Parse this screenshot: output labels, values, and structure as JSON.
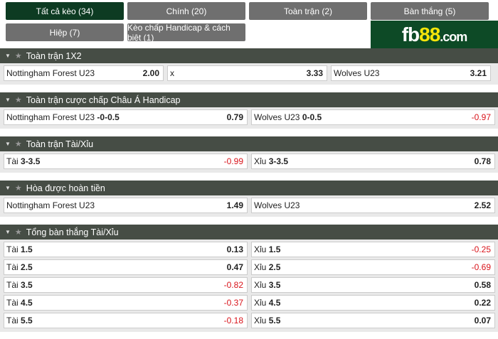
{
  "tabs": [
    {
      "label": "Tất cả kèo (34)",
      "active": true
    },
    {
      "label": "Chính (20)"
    },
    {
      "label": "Toàn trận (2)"
    },
    {
      "label": "Bàn thắng (5)"
    },
    {
      "label": "Hiệp (7)"
    },
    {
      "label": "Kèo chấp Handicap & cách biệt (1)"
    }
  ],
  "logo": {
    "text": "fb88.com"
  },
  "sections": [
    {
      "title": "Toàn trận 1X2",
      "rows": [
        [
          {
            "label": "Nottingham Forest U23",
            "line": "",
            "odds": "2.00"
          },
          {
            "label": "x",
            "line": "",
            "odds": "3.33"
          },
          {
            "label": "Wolves U23",
            "line": "",
            "odds": "3.21"
          }
        ]
      ]
    },
    {
      "title": "Toàn trận cược chấp Châu Á Handicap",
      "rows": [
        [
          {
            "label": "Nottingham Forest U23",
            "line": "-0-0.5",
            "odds": "0.79"
          },
          {
            "label": "Wolves U23",
            "line": "0-0.5",
            "odds": "-0.97"
          }
        ]
      ]
    },
    {
      "title": "Toàn trận Tài/Xỉu",
      "rows": [
        [
          {
            "label": "Tài",
            "line": "3-3.5",
            "odds": "-0.99"
          },
          {
            "label": "Xỉu",
            "line": "3-3.5",
            "odds": "0.78"
          }
        ]
      ]
    },
    {
      "title": "Hòa được hoàn tiền",
      "rows": [
        [
          {
            "label": "Nottingham Forest U23",
            "line": "",
            "odds": "1.49"
          },
          {
            "label": "Wolves U23",
            "line": "",
            "odds": "2.52"
          }
        ]
      ]
    },
    {
      "title": "Tổng bàn thắng Tài/Xỉu",
      "rows": [
        [
          {
            "label": "Tài",
            "line": "1.5",
            "odds": "0.13"
          },
          {
            "label": "Xỉu",
            "line": "1.5",
            "odds": "-0.25"
          }
        ],
        [
          {
            "label": "Tài",
            "line": "2.5",
            "odds": "0.47"
          },
          {
            "label": "Xỉu",
            "line": "2.5",
            "odds": "-0.69"
          }
        ],
        [
          {
            "label": "Tài",
            "line": "3.5",
            "odds": "-0.82"
          },
          {
            "label": "Xỉu",
            "line": "3.5",
            "odds": "0.58"
          }
        ],
        [
          {
            "label": "Tài",
            "line": "4.5",
            "odds": "-0.37"
          },
          {
            "label": "Xỉu",
            "line": "4.5",
            "odds": "0.22"
          }
        ],
        [
          {
            "label": "Tài",
            "line": "5.5",
            "odds": "-0.18"
          },
          {
            "label": "Xỉu",
            "line": "5.5",
            "odds": "0.07"
          }
        ]
      ]
    }
  ],
  "colors": {
    "active_tab": "#0d3b22",
    "tab": "#6f6f6f",
    "header": "#464d45",
    "negative": "#d9141b",
    "logo_bg": "#0d4a26",
    "logo_accent": "#f5e50a"
  }
}
